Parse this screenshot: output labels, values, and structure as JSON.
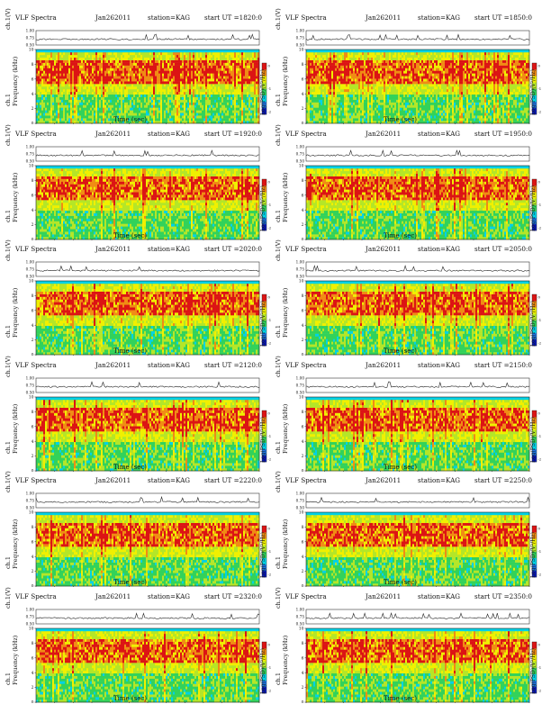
{
  "labels": {
    "title": "VLF Spectra",
    "date": "Jan262011",
    "station": "station=KAG",
    "xlabel": "Time (sec)",
    "ylabel_top": "ch.1(V)",
    "ylabel_spec": "ch.1",
    "ylabel_freq": "Frequency (kHz)",
    "colorbar_label": "Log(PSD)(V²/Hz)"
  },
  "colors": {
    "spectrum_ramp": [
      "#0a19b4",
      "#1e78e6",
      "#00d2e6",
      "#32d25a",
      "#b4e628",
      "#f0f000",
      "#f08c14",
      "#dc1414"
    ],
    "cutoff_band": "#00d2e6",
    "trace": "#222222"
  },
  "chart_data": [
    {
      "type": "heatmap",
      "ut_label": "start UT =1820:0",
      "xlim": [
        0,
        120
      ],
      "ylim_freq": [
        0,
        10
      ],
      "ylim_amp": [
        0.5,
        1.0
      ],
      "x_ticks": [
        0,
        10,
        20,
        30,
        40,
        50,
        60,
        70,
        80,
        90,
        100,
        110,
        120
      ],
      "y_ticks": [
        0,
        2,
        4,
        6,
        8,
        10
      ],
      "amp_ticks": [
        "1.00",
        "0.75",
        "0.50"
      ],
      "cutoff_khz": 9.7,
      "intense_band_khz": [
        5.5,
        8.5
      ],
      "colorbar_ticks": [
        "0",
        "-1",
        "-2"
      ]
    },
    {
      "type": "heatmap",
      "ut_label": "start UT =1850:0",
      "xlim": [
        0,
        120
      ],
      "ylim_freq": [
        0,
        10
      ],
      "ylim_amp": [
        0.5,
        1.0
      ],
      "x_ticks": [
        0,
        10,
        20,
        30,
        40,
        50,
        60,
        70,
        80,
        90,
        100,
        110,
        120
      ],
      "y_ticks": [
        0,
        2,
        4,
        6,
        8,
        10
      ],
      "amp_ticks": [
        "1.00",
        "0.75",
        "0.50"
      ],
      "cutoff_khz": 9.7,
      "intense_band_khz": [
        5.5,
        8.5
      ],
      "colorbar_ticks": [
        "0",
        "-1",
        "-2"
      ]
    },
    {
      "type": "heatmap",
      "ut_label": "start UT =1920:0",
      "xlim": [
        0,
        120
      ],
      "ylim_freq": [
        0,
        10
      ],
      "ylim_amp": [
        0.5,
        1.0
      ],
      "x_ticks": [
        0,
        10,
        20,
        30,
        40,
        50,
        60,
        70,
        80,
        90,
        100,
        110,
        120
      ],
      "y_ticks": [
        0,
        2,
        4,
        6,
        8,
        10
      ],
      "amp_ticks": [
        "1.00",
        "0.75",
        "0.50"
      ],
      "cutoff_khz": 9.7,
      "intense_band_khz": [
        5.5,
        8.5
      ],
      "colorbar_ticks": [
        "0",
        "-1",
        "-2"
      ]
    },
    {
      "type": "heatmap",
      "ut_label": "start UT =1950:0",
      "xlim": [
        0,
        120
      ],
      "ylim_freq": [
        0,
        10
      ],
      "ylim_amp": [
        0.5,
        1.0
      ],
      "x_ticks": [
        0,
        10,
        20,
        30,
        40,
        50,
        60,
        70,
        80,
        90,
        100,
        110,
        120
      ],
      "y_ticks": [
        0,
        2,
        4,
        6,
        8,
        10
      ],
      "amp_ticks": [
        "1.00",
        "0.75",
        "0.50"
      ],
      "cutoff_khz": 9.7,
      "intense_band_khz": [
        5.5,
        8.5
      ],
      "colorbar_ticks": [
        "0",
        "-1",
        "-2"
      ]
    },
    {
      "type": "heatmap",
      "ut_label": "start UT =2020:0",
      "xlim": [
        0,
        120
      ],
      "ylim_freq": [
        0,
        10
      ],
      "ylim_amp": [
        0.5,
        1.0
      ],
      "x_ticks": [
        0,
        10,
        20,
        30,
        40,
        50,
        60,
        70,
        80,
        90,
        100,
        110,
        120
      ],
      "y_ticks": [
        0,
        2,
        4,
        6,
        8,
        10
      ],
      "amp_ticks": [
        "1.00",
        "0.75",
        "0.50"
      ],
      "cutoff_khz": 9.7,
      "intense_band_khz": [
        5.5,
        8.5
      ],
      "colorbar_ticks": [
        "0",
        "-1",
        "-2"
      ]
    },
    {
      "type": "heatmap",
      "ut_label": "start UT =2050:0",
      "xlim": [
        0,
        120
      ],
      "ylim_freq": [
        0,
        10
      ],
      "ylim_amp": [
        0.5,
        1.0
      ],
      "x_ticks": [
        0,
        10,
        20,
        30,
        40,
        50,
        60,
        70,
        80,
        90,
        100,
        110,
        120
      ],
      "y_ticks": [
        0,
        2,
        4,
        6,
        8,
        10
      ],
      "amp_ticks": [
        "1.00",
        "0.75",
        "0.50"
      ],
      "cutoff_khz": 9.7,
      "intense_band_khz": [
        5.5,
        8.5
      ],
      "colorbar_ticks": [
        "0",
        "-1",
        "-2"
      ]
    },
    {
      "type": "heatmap",
      "ut_label": "start UT =2120:0",
      "xlim": [
        0,
        120
      ],
      "ylim_freq": [
        0,
        10
      ],
      "ylim_amp": [
        0.5,
        1.0
      ],
      "x_ticks": [
        0,
        10,
        20,
        30,
        40,
        50,
        60,
        70,
        80,
        90,
        100,
        110,
        120
      ],
      "y_ticks": [
        0,
        2,
        4,
        6,
        8,
        10
      ],
      "amp_ticks": [
        "1.00",
        "0.75",
        "0.50"
      ],
      "cutoff_khz": 9.7,
      "intense_band_khz": [
        5.5,
        8.5
      ],
      "colorbar_ticks": [
        "0",
        "-1",
        "-2"
      ]
    },
    {
      "type": "heatmap",
      "ut_label": "start UT =2150:0",
      "xlim": [
        0,
        120
      ],
      "ylim_freq": [
        0,
        10
      ],
      "ylim_amp": [
        0.5,
        1.0
      ],
      "x_ticks": [
        0,
        10,
        20,
        30,
        40,
        50,
        60,
        70,
        80,
        90,
        100,
        110,
        120
      ],
      "y_ticks": [
        0,
        2,
        4,
        6,
        8,
        10
      ],
      "amp_ticks": [
        "1.00",
        "0.75",
        "0.50"
      ],
      "cutoff_khz": 9.7,
      "intense_band_khz": [
        5.5,
        8.5
      ],
      "colorbar_ticks": [
        "0",
        "-1",
        "-2"
      ]
    },
    {
      "type": "heatmap",
      "ut_label": "start UT =2220:0",
      "xlim": [
        0,
        120
      ],
      "ylim_freq": [
        0,
        10
      ],
      "ylim_amp": [
        0.5,
        1.0
      ],
      "x_ticks": [
        0,
        10,
        20,
        30,
        40,
        50,
        60,
        70,
        80,
        90,
        100,
        110,
        120
      ],
      "y_ticks": [
        0,
        2,
        4,
        6,
        8,
        10
      ],
      "amp_ticks": [
        "1.00",
        "0.75",
        "0.50"
      ],
      "cutoff_khz": 9.7,
      "intense_band_khz": [
        5.5,
        8.5
      ],
      "colorbar_ticks": [
        "0",
        "-1",
        "-2"
      ]
    },
    {
      "type": "heatmap",
      "ut_label": "start UT =2250:0",
      "xlim": [
        0,
        120
      ],
      "ylim_freq": [
        0,
        10
      ],
      "ylim_amp": [
        0.5,
        1.0
      ],
      "x_ticks": [
        0,
        10,
        20,
        30,
        40,
        50,
        60,
        70,
        80,
        90,
        100,
        110,
        120
      ],
      "y_ticks": [
        0,
        2,
        4,
        6,
        8,
        10
      ],
      "amp_ticks": [
        "1.00",
        "0.75",
        "0.50"
      ],
      "cutoff_khz": 9.7,
      "intense_band_khz": [
        5.5,
        8.5
      ],
      "colorbar_ticks": [
        "0",
        "-1",
        "-2"
      ]
    },
    {
      "type": "heatmap",
      "ut_label": "start UT =2320:0",
      "xlim": [
        0,
        120
      ],
      "ylim_freq": [
        0,
        10
      ],
      "ylim_amp": [
        0.5,
        1.0
      ],
      "x_ticks": [
        0,
        10,
        20,
        30,
        40,
        50,
        60,
        70,
        80,
        90,
        100,
        110,
        120
      ],
      "y_ticks": [
        0,
        2,
        4,
        6,
        8,
        10
      ],
      "amp_ticks": [
        "1.00",
        "0.75",
        "0.50"
      ],
      "cutoff_khz": 9.7,
      "intense_band_khz": [
        5.5,
        8.5
      ],
      "colorbar_ticks": [
        "0",
        "-1",
        "-2"
      ]
    },
    {
      "type": "heatmap",
      "ut_label": "start UT =2350:0",
      "xlim": [
        0,
        120
      ],
      "ylim_freq": [
        0,
        10
      ],
      "ylim_amp": [
        0.5,
        1.0
      ],
      "x_ticks": [
        0,
        10,
        20,
        30,
        40,
        50,
        60,
        70,
        80,
        90,
        100,
        110,
        120
      ],
      "y_ticks": [
        0,
        2,
        4,
        6,
        8,
        10
      ],
      "amp_ticks": [
        "1.00",
        "0.75",
        "0.50"
      ],
      "cutoff_khz": 9.7,
      "intense_band_khz": [
        5.5,
        8.5
      ],
      "colorbar_ticks": [
        "0",
        "-1",
        "-2"
      ]
    }
  ]
}
